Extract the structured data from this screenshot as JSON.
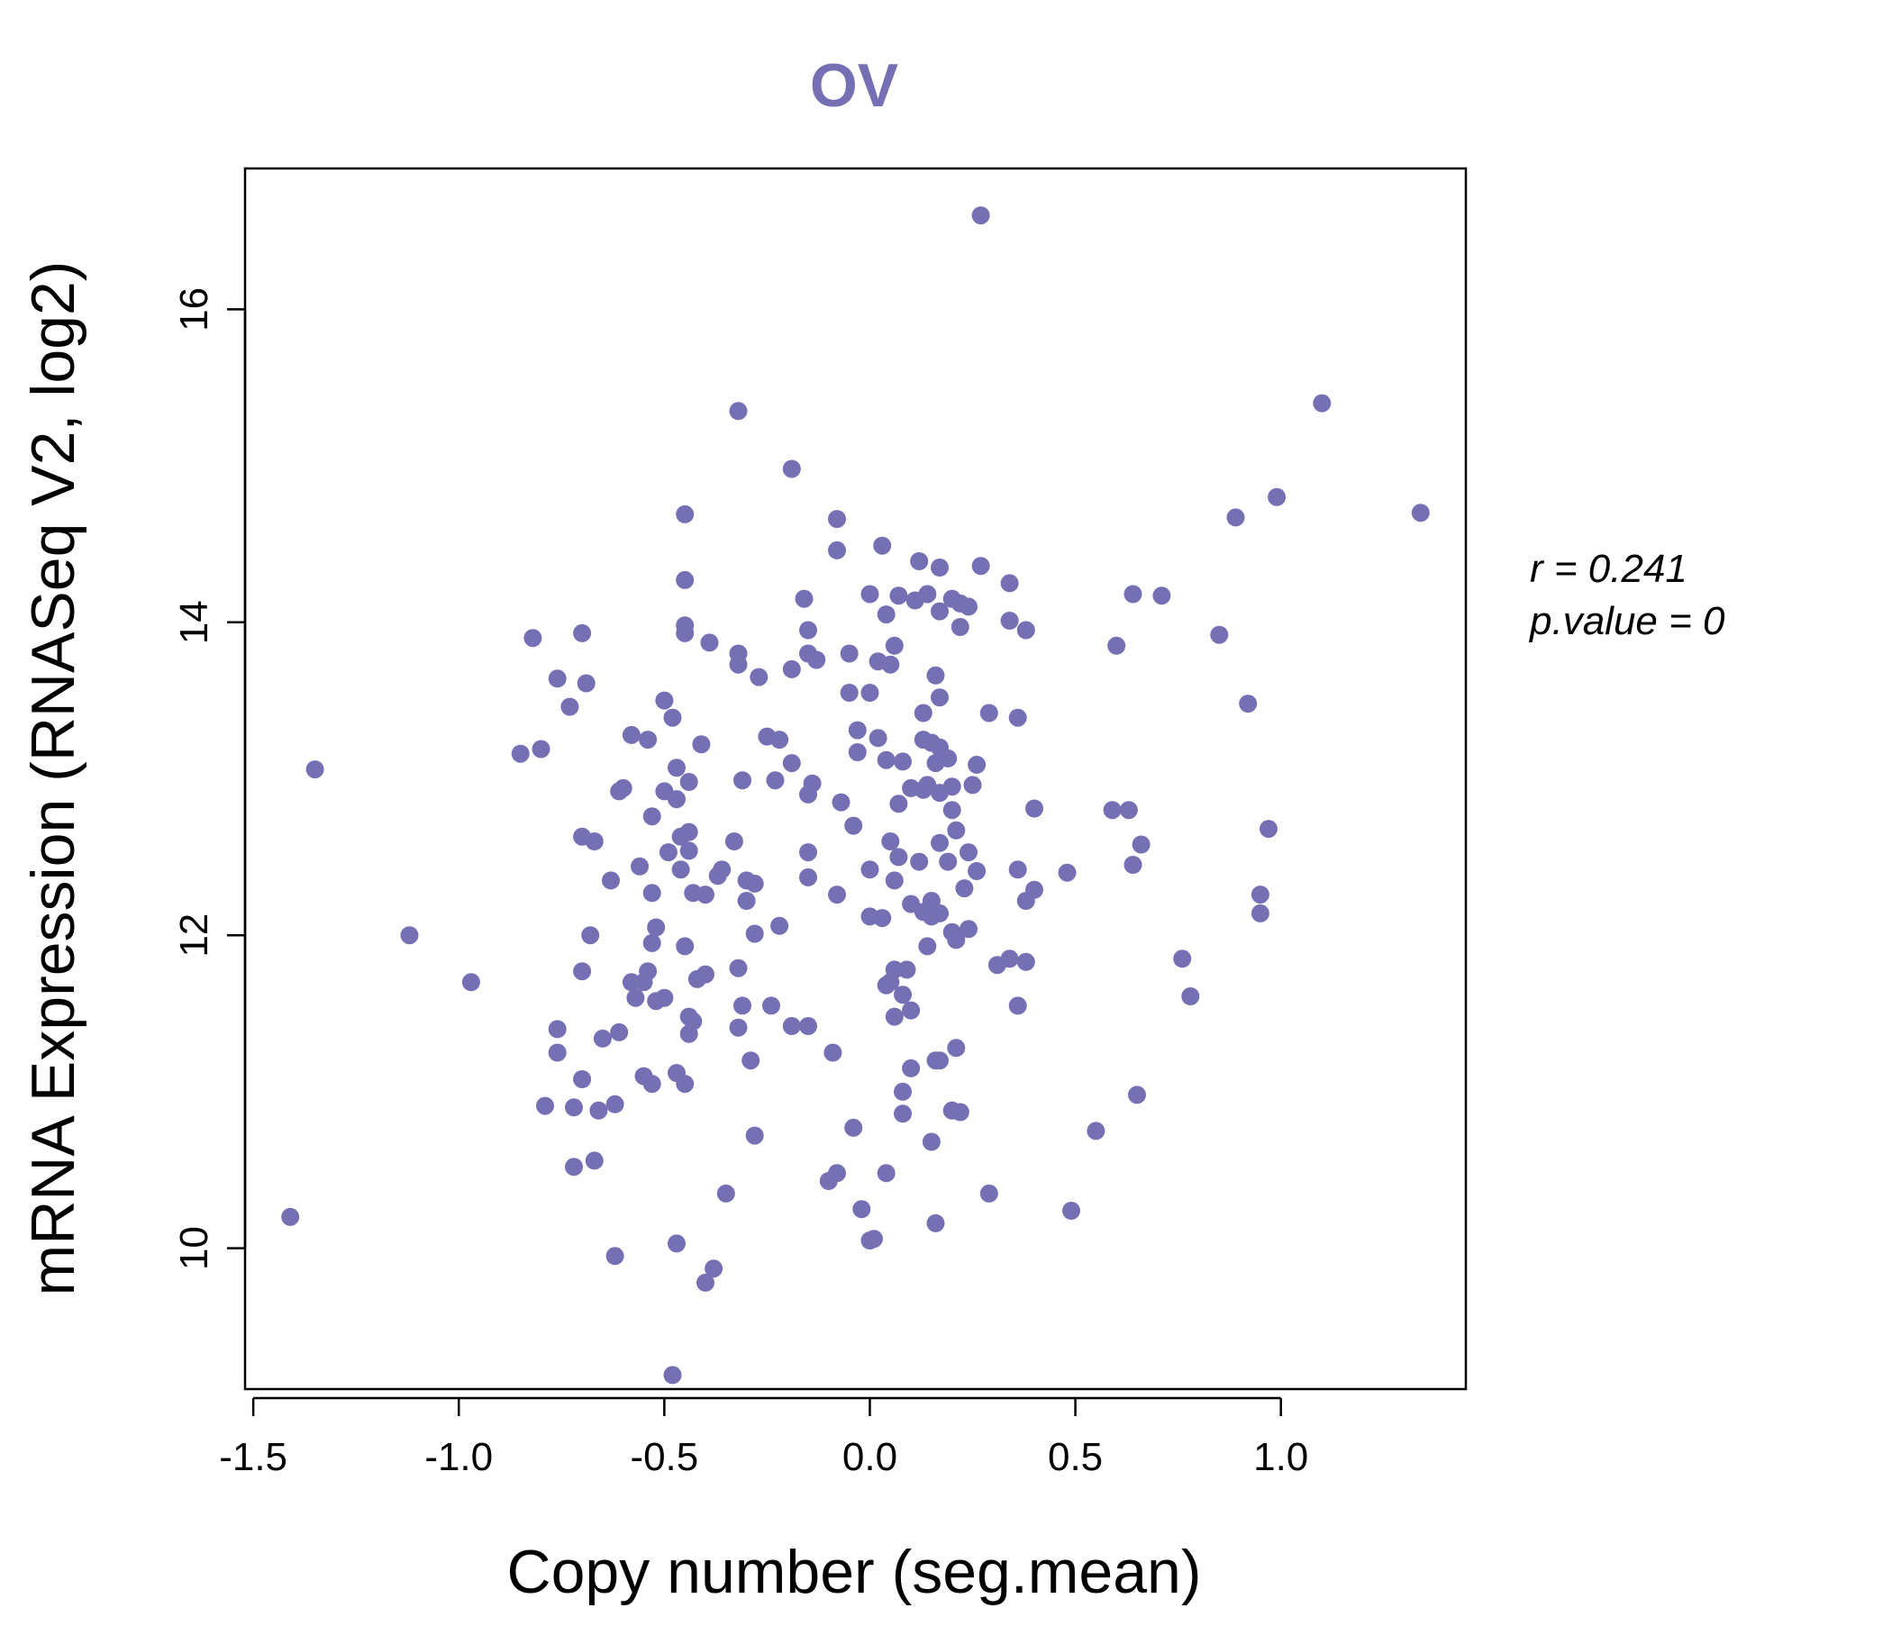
{
  "chart_data": {
    "type": "scatter",
    "title": "OV",
    "xlabel": "Copy number (seg.mean)",
    "ylabel": "mRNA Expression (RNASeq V2, log2)",
    "xlim": [
      -1.52,
      1.45
    ],
    "ylim": [
      9.1,
      16.9
    ],
    "x_ticks": [
      -1.5,
      -1.0,
      -0.5,
      0.0,
      0.5,
      1.0
    ],
    "x_tick_labels": [
      "-1.5",
      "-1.0",
      "-0.5",
      "0.0",
      "0.5",
      "1.0"
    ],
    "y_ticks": [
      10,
      12,
      14,
      16
    ],
    "y_tick_labels": [
      "10",
      "12",
      "14",
      "16"
    ],
    "grid": false,
    "legend": "none",
    "color": "#7570b3",
    "annotation": {
      "r_label": "r = 0.241",
      "p_label": "p.value = 0"
    },
    "points": [
      [
        0.27,
        16.6
      ],
      [
        -0.32,
        15.35
      ],
      [
        1.1,
        15.4
      ],
      [
        -0.19,
        14.98
      ],
      [
        0.99,
        14.8
      ],
      [
        1.34,
        14.7
      ],
      [
        0.89,
        14.67
      ],
      [
        -0.45,
        14.69
      ],
      [
        -0.08,
        14.66
      ],
      [
        -0.08,
        14.46
      ],
      [
        0.03,
        14.49
      ],
      [
        0.12,
        14.39
      ],
      [
        0.17,
        14.35
      ],
      [
        0.27,
        14.36
      ],
      [
        -0.45,
        14.27
      ],
      [
        0.34,
        14.25
      ],
      [
        0.0,
        14.18
      ],
      [
        0.07,
        14.17
      ],
      [
        0.14,
        14.18
      ],
      [
        0.11,
        14.14
      ],
      [
        0.2,
        14.15
      ],
      [
        0.22,
        14.12
      ],
      [
        0.64,
        14.18
      ],
      [
        0.71,
        14.17
      ],
      [
        -0.16,
        14.15
      ],
      [
        0.24,
        14.1
      ],
      [
        0.17,
        14.07
      ],
      [
        0.04,
        14.05
      ],
      [
        0.34,
        14.01
      ],
      [
        0.22,
        13.97
      ],
      [
        0.38,
        13.95
      ],
      [
        -0.15,
        13.95
      ],
      [
        -0.45,
        13.98
      ],
      [
        -0.45,
        13.93
      ],
      [
        -0.39,
        13.87
      ],
      [
        -0.82,
        13.9
      ],
      [
        -0.7,
        13.93
      ],
      [
        0.6,
        13.85
      ],
      [
        0.85,
        13.92
      ],
      [
        0.06,
        13.85
      ],
      [
        -0.32,
        13.8
      ],
      [
        -0.15,
        13.8
      ],
      [
        -0.05,
        13.8
      ],
      [
        -0.13,
        13.76
      ],
      [
        0.02,
        13.75
      ],
      [
        0.05,
        13.73
      ],
      [
        -0.32,
        13.73
      ],
      [
        -0.27,
        13.65
      ],
      [
        -0.19,
        13.7
      ],
      [
        0.16,
        13.66
      ],
      [
        -0.76,
        13.64
      ],
      [
        -0.69,
        13.61
      ],
      [
        -0.05,
        13.55
      ],
      [
        0.0,
        13.55
      ],
      [
        0.17,
        13.52
      ],
      [
        -0.5,
        13.5
      ],
      [
        -0.73,
        13.46
      ],
      [
        0.92,
        13.48
      ],
      [
        0.13,
        13.42
      ],
      [
        0.29,
        13.42
      ],
      [
        0.36,
        13.39
      ],
      [
        -0.48,
        13.39
      ],
      [
        -0.58,
        13.28
      ],
      [
        -0.54,
        13.25
      ],
      [
        -0.03,
        13.31
      ],
      [
        -0.41,
        13.22
      ],
      [
        -0.25,
        13.27
      ],
      [
        -0.22,
        13.25
      ],
      [
        0.02,
        13.26
      ],
      [
        0.13,
        13.25
      ],
      [
        0.15,
        13.23
      ],
      [
        0.17,
        13.2
      ],
      [
        -0.8,
        13.19
      ],
      [
        -0.85,
        13.16
      ],
      [
        -0.03,
        13.17
      ],
      [
        0.19,
        13.13
      ],
      [
        0.04,
        13.12
      ],
      [
        0.08,
        13.11
      ],
      [
        0.16,
        13.1
      ],
      [
        0.26,
        13.09
      ],
      [
        -0.19,
        13.1
      ],
      [
        -1.35,
        13.06
      ],
      [
        -0.47,
        13.07
      ],
      [
        -0.31,
        12.99
      ],
      [
        -0.23,
        12.99
      ],
      [
        -0.14,
        12.97
      ],
      [
        -0.44,
        12.98
      ],
      [
        0.14,
        12.96
      ],
      [
        0.25,
        12.96
      ],
      [
        0.1,
        12.94
      ],
      [
        0.2,
        12.95
      ],
      [
        -0.6,
        12.94
      ],
      [
        -0.61,
        12.92
      ],
      [
        -0.5,
        12.92
      ],
      [
        0.13,
        12.93
      ],
      [
        -0.47,
        12.87
      ],
      [
        -0.15,
        12.9
      ],
      [
        0.17,
        12.91
      ],
      [
        -0.07,
        12.85
      ],
      [
        0.07,
        12.84
      ],
      [
        0.2,
        12.8
      ],
      [
        0.4,
        12.81
      ],
      [
        0.59,
        12.8
      ],
      [
        0.63,
        12.8
      ],
      [
        -0.53,
        12.76
      ],
      [
        -0.04,
        12.7
      ],
      [
        0.21,
        12.67
      ],
      [
        0.97,
        12.68
      ],
      [
        -0.7,
        12.63
      ],
      [
        -0.67,
        12.6
      ],
      [
        -0.46,
        12.63
      ],
      [
        -0.44,
        12.66
      ],
      [
        0.05,
        12.6
      ],
      [
        0.17,
        12.59
      ],
      [
        0.66,
        12.58
      ],
      [
        -0.33,
        12.6
      ],
      [
        -0.49,
        12.53
      ],
      [
        -0.44,
        12.54
      ],
      [
        -0.15,
        12.53
      ],
      [
        0.07,
        12.5
      ],
      [
        0.24,
        12.53
      ],
      [
        0.19,
        12.47
      ],
      [
        0.12,
        12.47
      ],
      [
        -0.56,
        12.44
      ],
      [
        -0.36,
        12.42
      ],
      [
        -0.46,
        12.42
      ],
      [
        0.0,
        12.42
      ],
      [
        0.36,
        12.42
      ],
      [
        0.48,
        12.4
      ],
      [
        0.64,
        12.45
      ],
      [
        -0.63,
        12.35
      ],
      [
        -0.37,
        12.38
      ],
      [
        -0.3,
        12.35
      ],
      [
        -0.28,
        12.33
      ],
      [
        -0.15,
        12.37
      ],
      [
        0.06,
        12.35
      ],
      [
        0.26,
        12.41
      ],
      [
        0.23,
        12.3
      ],
      [
        0.4,
        12.29
      ],
      [
        -0.53,
        12.27
      ],
      [
        -0.43,
        12.27
      ],
      [
        -0.4,
        12.26
      ],
      [
        -0.08,
        12.26
      ],
      [
        0.95,
        12.26
      ],
      [
        0.15,
        12.22
      ],
      [
        0.38,
        12.22
      ],
      [
        -0.3,
        12.22
      ],
      [
        0.1,
        12.2
      ],
      [
        0.13,
        12.15
      ],
      [
        0.15,
        12.12
      ],
      [
        0.17,
        12.14
      ],
      [
        0.0,
        12.12
      ],
      [
        0.03,
        12.11
      ],
      [
        0.95,
        12.14
      ],
      [
        -0.52,
        12.05
      ],
      [
        -0.22,
        12.06
      ],
      [
        0.24,
        12.04
      ],
      [
        -0.68,
        12.0
      ],
      [
        -1.12,
        12.0
      ],
      [
        -0.28,
        12.01
      ],
      [
        0.21,
        11.97
      ],
      [
        0.2,
        12.02
      ],
      [
        -0.53,
        11.95
      ],
      [
        -0.45,
        11.93
      ],
      [
        0.14,
        11.93
      ],
      [
        0.76,
        11.85
      ],
      [
        0.34,
        11.85
      ],
      [
        0.38,
        11.83
      ],
      [
        0.31,
        11.81
      ],
      [
        0.09,
        11.78
      ],
      [
        0.06,
        11.78
      ],
      [
        -0.7,
        11.77
      ],
      [
        -0.54,
        11.77
      ],
      [
        -0.32,
        11.79
      ],
      [
        -0.4,
        11.75
      ],
      [
        -0.42,
        11.72
      ],
      [
        -0.58,
        11.7
      ],
      [
        -0.55,
        11.7
      ],
      [
        0.05,
        11.7
      ],
      [
        0.04,
        11.68
      ],
      [
        -0.97,
        11.7
      ],
      [
        -0.5,
        11.6
      ],
      [
        -0.57,
        11.6
      ],
      [
        0.08,
        11.62
      ],
      [
        0.78,
        11.61
      ],
      [
        -0.52,
        11.58
      ],
      [
        -0.31,
        11.55
      ],
      [
        -0.24,
        11.55
      ],
      [
        0.1,
        11.52
      ],
      [
        0.36,
        11.55
      ],
      [
        -0.44,
        11.48
      ],
      [
        -0.43,
        11.45
      ],
      [
        0.06,
        11.48
      ],
      [
        -0.76,
        11.4
      ],
      [
        -0.19,
        11.42
      ],
      [
        -0.15,
        11.42
      ],
      [
        -0.32,
        11.41
      ],
      [
        -0.44,
        11.37
      ],
      [
        -0.61,
        11.38
      ],
      [
        -0.65,
        11.34
      ],
      [
        0.21,
        11.28
      ],
      [
        -0.76,
        11.25
      ],
      [
        -0.09,
        11.25
      ],
      [
        0.17,
        11.2
      ],
      [
        -0.29,
        11.2
      ],
      [
        0.16,
        11.2
      ],
      [
        0.1,
        11.15
      ],
      [
        -0.55,
        11.1
      ],
      [
        -0.47,
        11.12
      ],
      [
        -0.53,
        11.05
      ],
      [
        -0.45,
        11.05
      ],
      [
        -0.7,
        11.08
      ],
      [
        0.08,
        11.0
      ],
      [
        0.65,
        10.98
      ],
      [
        -0.79,
        10.91
      ],
      [
        -0.72,
        10.9
      ],
      [
        -0.62,
        10.92
      ],
      [
        -0.66,
        10.88
      ],
      [
        0.08,
        10.86
      ],
      [
        0.2,
        10.88
      ],
      [
        0.22,
        10.87
      ],
      [
        -0.04,
        10.77
      ],
      [
        0.55,
        10.75
      ],
      [
        -0.28,
        10.72
      ],
      [
        0.15,
        10.68
      ],
      [
        -0.67,
        10.56
      ],
      [
        -0.72,
        10.52
      ],
      [
        0.04,
        10.48
      ],
      [
        -0.08,
        10.48
      ],
      [
        -0.1,
        10.43
      ],
      [
        -0.35,
        10.35
      ],
      [
        0.29,
        10.35
      ],
      [
        -0.02,
        10.25
      ],
      [
        0.49,
        10.24
      ],
      [
        -1.41,
        10.2
      ],
      [
        0.16,
        10.16
      ],
      [
        0.0,
        10.05
      ],
      [
        0.01,
        10.06
      ],
      [
        -0.47,
        10.03
      ],
      [
        -0.62,
        9.95
      ],
      [
        -0.38,
        9.87
      ],
      [
        -0.4,
        9.78
      ],
      [
        -0.48,
        9.19
      ]
    ]
  }
}
